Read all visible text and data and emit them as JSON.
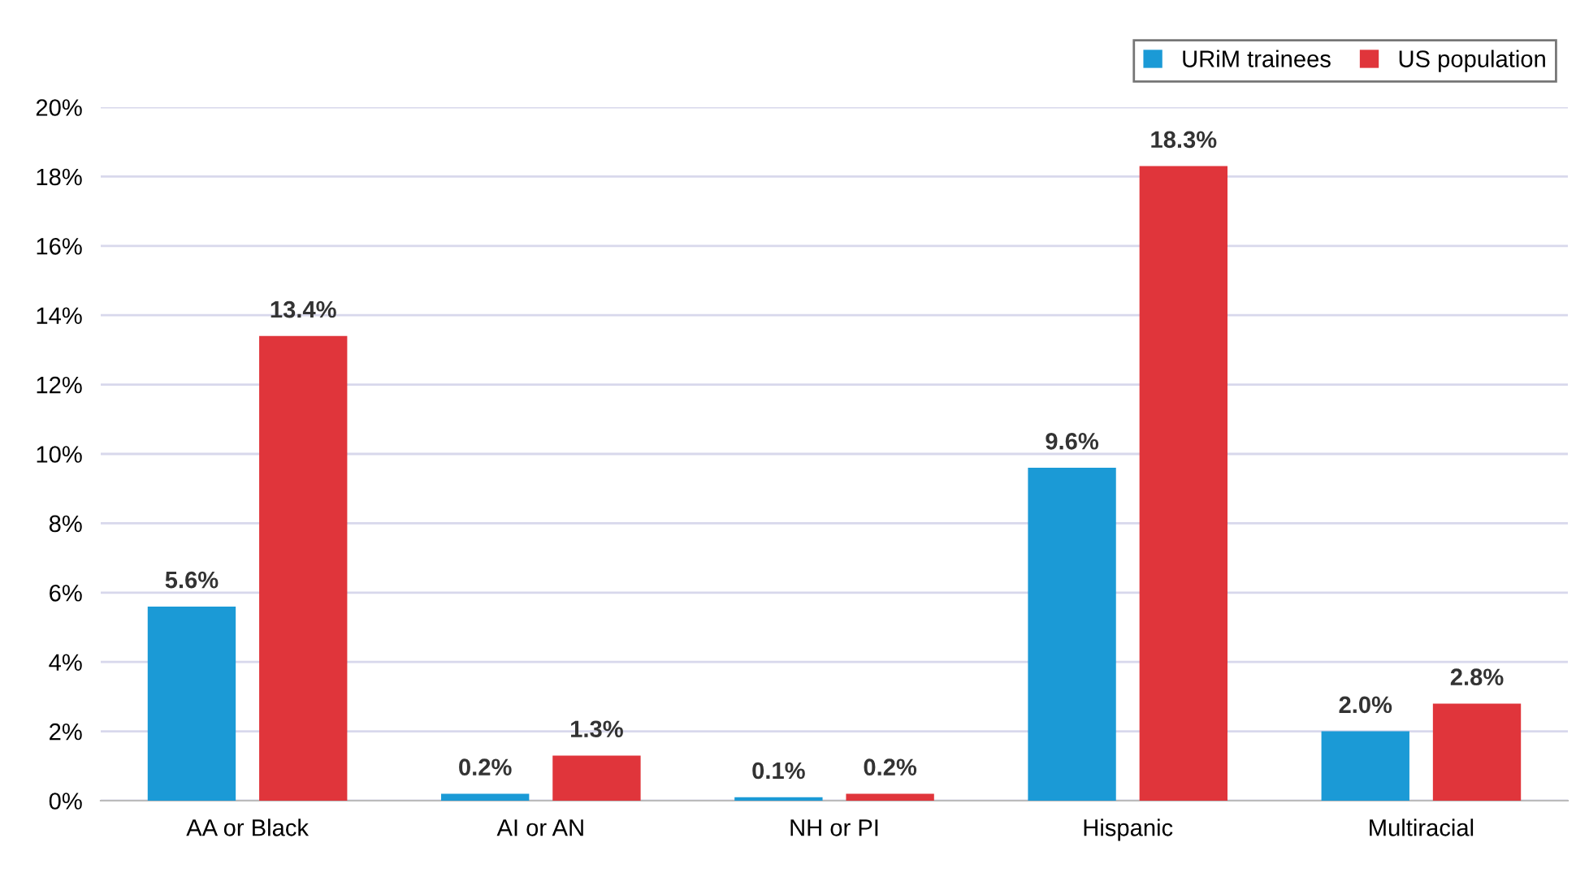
{
  "chart_data": {
    "type": "bar",
    "categories": [
      "AA or Black",
      "AI or AN",
      "NH or PI",
      "Hispanic",
      "Multiracial"
    ],
    "series": [
      {
        "name": "URiM trainees",
        "color": "#1b9ad6",
        "values": [
          5.6,
          0.2,
          0.1,
          9.6,
          2.0
        ],
        "value_labels": [
          "5.6%",
          "0.2%",
          "0.1%",
          "9.6%",
          "2.0%"
        ]
      },
      {
        "name": "US population",
        "color": "#e0353b",
        "values": [
          13.4,
          1.3,
          0.2,
          18.3,
          2.8
        ],
        "value_labels": [
          "13.4%",
          "1.3%",
          "0.2%",
          "18.3%",
          "2.8%"
        ]
      }
    ],
    "ylim": [
      0,
      20
    ],
    "yticks": [
      {
        "value": 0,
        "label": "0%"
      },
      {
        "value": 2,
        "label": "2%"
      },
      {
        "value": 4,
        "label": "4%"
      },
      {
        "value": 6,
        "label": "6%"
      },
      {
        "value": 8,
        "label": "8%"
      },
      {
        "value": 10,
        "label": "10%"
      },
      {
        "value": 12,
        "label": "12%"
      },
      {
        "value": 14,
        "label": "14%"
      },
      {
        "value": 16,
        "label": "16%"
      },
      {
        "value": 18,
        "label": "18%"
      },
      {
        "value": 20,
        "label": "20%"
      }
    ],
    "grid": "y",
    "legend": "top right"
  }
}
